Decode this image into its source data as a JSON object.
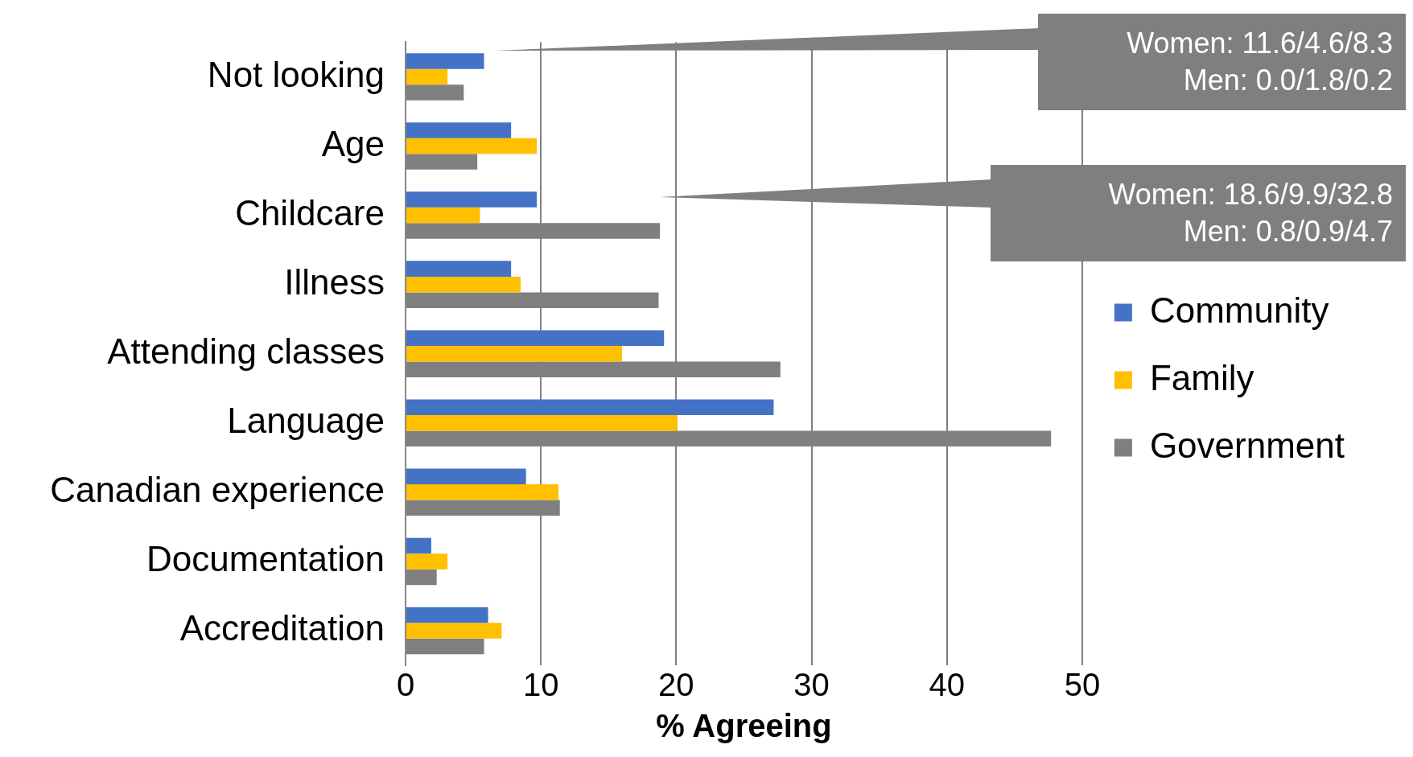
{
  "chart_data": {
    "type": "bar",
    "orientation": "horizontal",
    "xlabel": "% Agreeing",
    "categories": [
      "Not looking",
      "Age",
      "Childcare",
      "Illness",
      "Attending classes",
      "Language",
      "Canadian experience",
      "Documentation",
      "Accreditation"
    ],
    "series": [
      {
        "name": "Community",
        "color": "#4472c4",
        "values": [
          5.8,
          7.8,
          9.7,
          7.8,
          19.1,
          27.2,
          8.9,
          1.9,
          6.1
        ]
      },
      {
        "name": "Family",
        "color": "#ffc000",
        "values": [
          3.1,
          9.7,
          5.5,
          8.5,
          16.0,
          20.1,
          11.3,
          3.1,
          7.1
        ]
      },
      {
        "name": "Government",
        "color": "#7f7f7f",
        "values": [
          4.3,
          5.3,
          18.8,
          18.7,
          27.7,
          47.7,
          11.4,
          2.3,
          5.8
        ]
      }
    ],
    "xlim": [
      0,
      50
    ],
    "xticks": [
      0,
      10,
      20,
      30,
      40,
      50
    ],
    "grid": "x",
    "legend": "right",
    "annotations": [
      "Women: 11.6/4.6/8.3\nMen: 0.0/1.8/0.2",
      "Women: 18.6/9.9/32.8\nMen: 0.8/0.9/4.7"
    ]
  }
}
